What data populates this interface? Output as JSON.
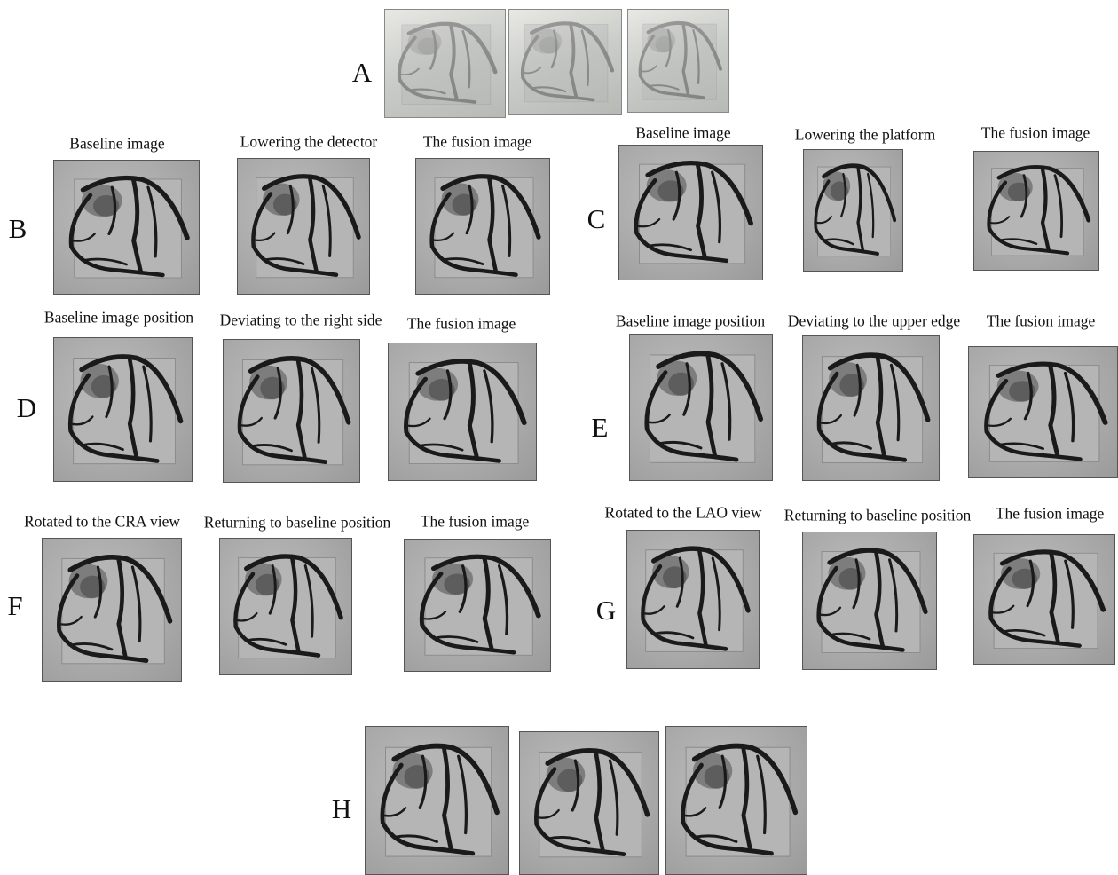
{
  "panels": [
    {
      "label": "A"
    },
    {
      "label": "B",
      "captions": [
        "Baseline image",
        "Lowering the detector",
        "The fusion image"
      ]
    },
    {
      "label": "C",
      "captions": [
        "Baseline image",
        "Lowering the platform",
        "The fusion image"
      ]
    },
    {
      "label": "D",
      "captions": [
        "Baseline image position",
        "Deviating to the right side",
        "The fusion image"
      ]
    },
    {
      "label": "E",
      "captions": [
        "Baseline image position",
        "Deviating to the upper edge",
        "The fusion image"
      ]
    },
    {
      "label": "F",
      "captions": [
        "Rotated to the CRA view",
        "Returning to baseline position",
        "The fusion image"
      ]
    },
    {
      "label": "G",
      "captions": [
        "Rotated to the LAO view",
        "Returning to baseline position",
        "The fusion image"
      ]
    },
    {
      "label": "H"
    }
  ]
}
